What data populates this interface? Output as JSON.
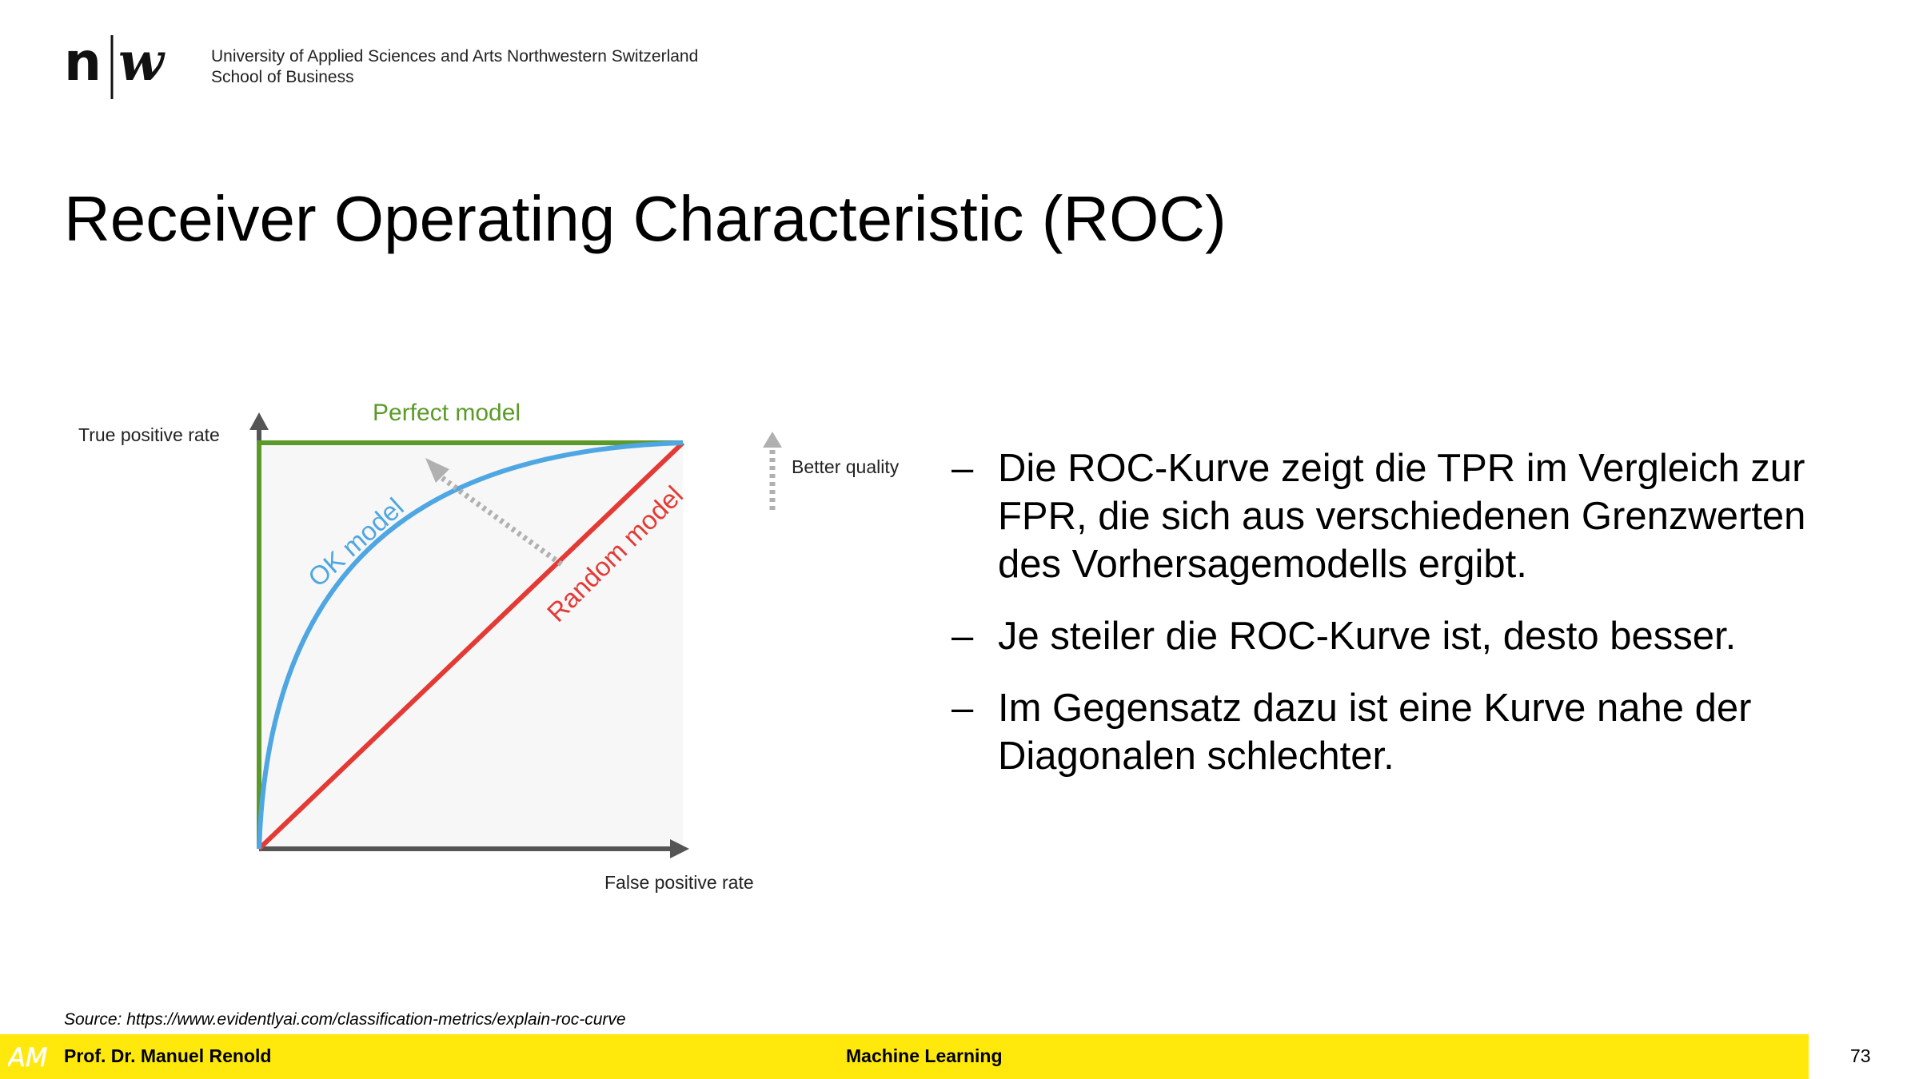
{
  "header": {
    "institution_line1": "University of Applied Sciences and Arts Northwestern Switzerland",
    "institution_line2": "School of Business",
    "logo_alt": "n|w"
  },
  "slide": {
    "title": "Receiver Operating Characteristic (ROC)"
  },
  "diagram": {
    "y_axis_label": "True positive rate",
    "x_axis_label": "False positive rate",
    "perfect_label": "Perfect model",
    "ok_label": "OK model",
    "random_label": "Random model",
    "better_quality_label": "Better quality",
    "colors": {
      "perfect": "#5b9a28",
      "ok": "#4ea6e2",
      "random": "#e43a35",
      "axis": "#555555",
      "arrow": "#b0b0b0"
    }
  },
  "bullets": {
    "dash": "–",
    "items": [
      "Die ROC-Kurve zeigt die TPR im Vergleich zur FPR, die sich aus verschiedenen Grenzwerten des Vorhersagemodells ergibt.",
      "Je steiler die ROC-Kurve ist, desto besser.",
      "Im Gegensatz dazu ist eine Kurve nahe der Diagonalen schlechter."
    ]
  },
  "source": "Source: https://www.evidentlyai.com/classification-metrics/explain-roc-curve",
  "footer": {
    "author": "Prof. Dr. Manuel Renold",
    "course": "Machine Learning",
    "page": "73",
    "logo_text": "AM"
  }
}
